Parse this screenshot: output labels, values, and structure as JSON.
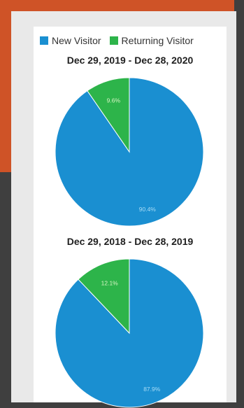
{
  "colors": {
    "new_visitor": "#1a8fd1",
    "returning_visitor": "#2db44a",
    "label_new": "#a9dcf6",
    "label_returning": "#d8f5c4"
  },
  "legend": [
    {
      "label": "New Visitor",
      "color": "#1a8fd1"
    },
    {
      "label": "Returning Visitor",
      "color": "#2db44a"
    }
  ],
  "chart_data": [
    {
      "type": "pie",
      "title": "Dec 29, 2019 - Dec 28, 2020",
      "slices": [
        {
          "name": "New Visitor",
          "value": 90.4,
          "label": "90.4%"
        },
        {
          "name": "Returning Visitor",
          "value": 9.6,
          "label": "9.6%"
        }
      ]
    },
    {
      "type": "pie",
      "title": "Dec 29, 2018 - Dec 28, 2019",
      "slices": [
        {
          "name": "New Visitor",
          "value": 87.9,
          "label": "87.9%"
        },
        {
          "name": "Returning Visitor",
          "value": 12.1,
          "label": "12.1%"
        }
      ]
    }
  ]
}
